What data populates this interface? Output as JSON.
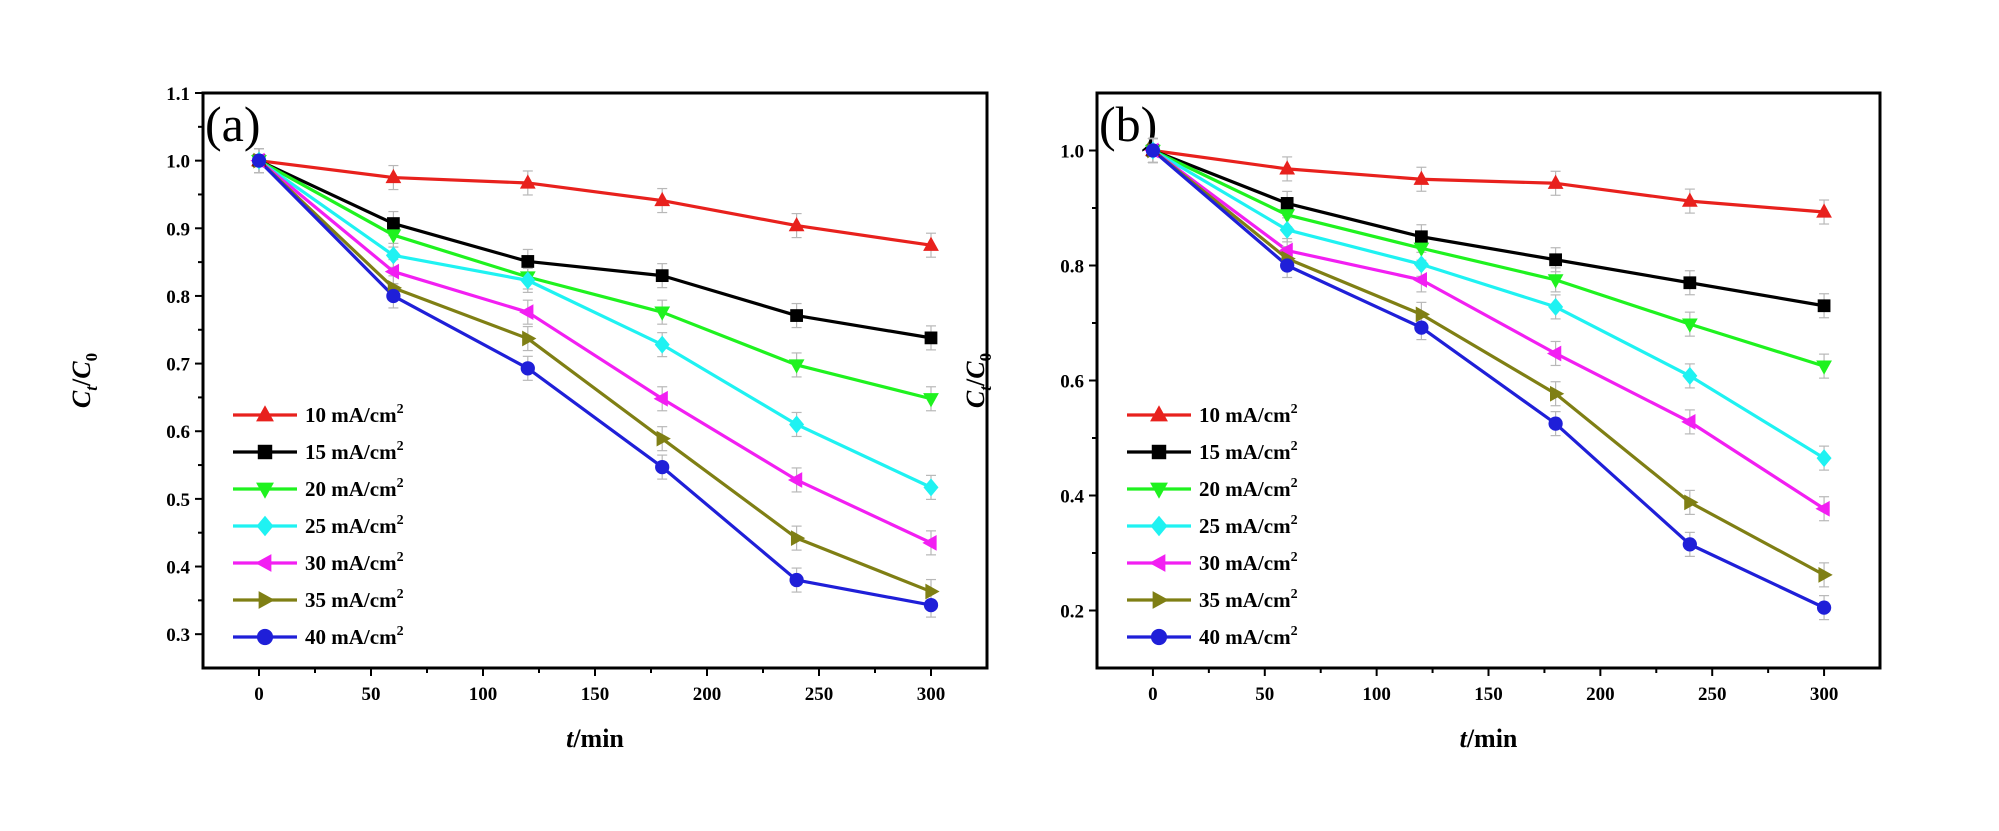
{
  "chart_data": [
    {
      "type": "line",
      "panel_label": "(a)",
      "xlabel_italic": "t",
      "xlabel_unit": "/min",
      "ylabel_parts": [
        "C",
        "t",
        "/",
        "C",
        "0"
      ],
      "xlim": [
        -25,
        325
      ],
      "ylim": [
        0.25,
        1.1
      ],
      "xticks": [
        0,
        50,
        100,
        150,
        200,
        250,
        300
      ],
      "yticks": [
        0.3,
        0.4,
        0.5,
        0.6,
        0.7,
        0.8,
        0.9,
        1.0,
        1.1
      ],
      "ytick_labels": [
        "0.3",
        "0.4",
        "0.5",
        "0.6",
        "0.7",
        "0.8",
        "0.9",
        "1.0",
        "1.1"
      ],
      "x": [
        0,
        60,
        120,
        180,
        240,
        300
      ],
      "legend_position": "lower-left",
      "series": [
        {
          "name": "10 mA/cm",
          "sup": "2",
          "color": "#e8211d",
          "marker": "triangle-up",
          "values": [
            1.0,
            0.975,
            0.967,
            0.941,
            0.904,
            0.875
          ]
        },
        {
          "name": "15 mA/cm",
          "sup": "2",
          "color": "#000000",
          "marker": "square",
          "values": [
            1.0,
            0.907,
            0.851,
            0.83,
            0.771,
            0.738
          ]
        },
        {
          "name": "20 mA/cm",
          "sup": "2",
          "color": "#1ff21f",
          "marker": "triangle-down",
          "values": [
            1.0,
            0.89,
            0.828,
            0.776,
            0.698,
            0.648
          ]
        },
        {
          "name": "25 mA/cm",
          "sup": "2",
          "color": "#1ff2f2",
          "marker": "diamond",
          "values": [
            1.0,
            0.86,
            0.823,
            0.728,
            0.61,
            0.517
          ]
        },
        {
          "name": "30 mA/cm",
          "sup": "2",
          "color": "#f21ff2",
          "marker": "triangle-left",
          "values": [
            1.0,
            0.836,
            0.776,
            0.648,
            0.528,
            0.435
          ]
        },
        {
          "name": "35 mA/cm",
          "sup": "2",
          "color": "#7f7f14",
          "marker": "triangle-right",
          "values": [
            1.0,
            0.812,
            0.737,
            0.589,
            0.442,
            0.363
          ]
        },
        {
          "name": "40 mA/cm",
          "sup": "2",
          "color": "#1f1fd8",
          "marker": "circle",
          "values": [
            1.0,
            0.8,
            0.693,
            0.547,
            0.38,
            0.343
          ]
        }
      ]
    },
    {
      "type": "line",
      "panel_label": "(b)",
      "xlabel_italic": "t",
      "xlabel_unit": "/min",
      "ylabel_parts": [
        "C",
        "t",
        "/",
        "C",
        "0"
      ],
      "xlim": [
        -25,
        325
      ],
      "ylim": [
        0.1,
        1.1
      ],
      "xticks": [
        0,
        50,
        100,
        150,
        200,
        250,
        300
      ],
      "yticks": [
        0.2,
        0.4,
        0.6,
        0.8,
        1.0
      ],
      "ytick_labels": [
        "0.2",
        "0.4",
        "0.6",
        "0.8",
        "1.0"
      ],
      "x": [
        0,
        60,
        120,
        180,
        240,
        300
      ],
      "legend_position": "lower-left",
      "series": [
        {
          "name": "10 mA/cm",
          "sup": "2",
          "color": "#e8211d",
          "marker": "triangle-up",
          "values": [
            1.0,
            0.968,
            0.95,
            0.943,
            0.912,
            0.893
          ]
        },
        {
          "name": "15 mA/cm",
          "sup": "2",
          "color": "#000000",
          "marker": "square",
          "values": [
            1.0,
            0.908,
            0.85,
            0.81,
            0.77,
            0.73
          ]
        },
        {
          "name": "20 mA/cm",
          "sup": "2",
          "color": "#1ff21f",
          "marker": "triangle-down",
          "values": [
            1.0,
            0.888,
            0.83,
            0.775,
            0.698,
            0.625
          ]
        },
        {
          "name": "25 mA/cm",
          "sup": "2",
          "color": "#1ff2f2",
          "marker": "diamond",
          "values": [
            1.0,
            0.862,
            0.802,
            0.728,
            0.608,
            0.465
          ]
        },
        {
          "name": "30 mA/cm",
          "sup": "2",
          "color": "#f21ff2",
          "marker": "triangle-left",
          "values": [
            1.0,
            0.826,
            0.775,
            0.647,
            0.528,
            0.377
          ]
        },
        {
          "name": "35 mA/cm",
          "sup": "2",
          "color": "#7f7f14",
          "marker": "triangle-right",
          "values": [
            1.0,
            0.812,
            0.715,
            0.577,
            0.388,
            0.262
          ]
        },
        {
          "name": "40 mA/cm",
          "sup": "2",
          "color": "#1f1fd8",
          "marker": "circle",
          "values": [
            1.0,
            0.8,
            0.692,
            0.525,
            0.315,
            0.205
          ]
        }
      ]
    }
  ]
}
